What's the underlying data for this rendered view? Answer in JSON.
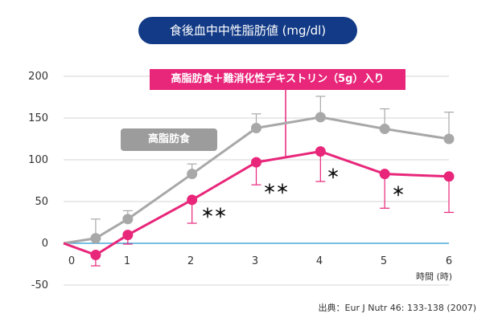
{
  "title": "食後血中中性脂肪値 (mg/dl)",
  "source": "出典：Eur J Nutr 46: 133-138 (2007)",
  "chart_data": {
    "type": "line",
    "x_unit_label": "時間 (時)",
    "x_tick_labels": [
      "0",
      "1",
      "2",
      "3",
      "4",
      "5",
      "6"
    ],
    "y_tick_labels": [
      "200",
      "150",
      "100",
      "50",
      "0",
      "-50"
    ],
    "ylim": [
      -50,
      200
    ],
    "xlim": [
      0,
      6
    ],
    "grid": true,
    "series": [
      {
        "name": "高脂肪食",
        "color": "#a8a8a8",
        "x": [
          0,
          0.5,
          1,
          2,
          3,
          4,
          5,
          6
        ],
        "values": [
          0,
          6,
          29,
          83,
          138,
          151,
          137,
          125
        ],
        "error_up": [
          0,
          23,
          10,
          12,
          17,
          25,
          24,
          32
        ],
        "error_down": [
          0,
          0,
          0,
          0,
          0,
          0,
          0,
          0
        ]
      },
      {
        "name": "高脂肪食＋難消化性デキストリン（5g）入り",
        "color": "#e8267a",
        "x": [
          0,
          0.5,
          1,
          2,
          3,
          4,
          5,
          6
        ],
        "values": [
          0,
          -14,
          10,
          52,
          97,
          110,
          83,
          80
        ],
        "error_up": [
          0,
          0,
          0,
          0,
          0,
          0,
          0,
          0
        ],
        "error_down": [
          0,
          13,
          11,
          28,
          27,
          36,
          41,
          43
        ]
      }
    ],
    "annotations": [
      "＊＊",
      "＊＊",
      "＊",
      "＊"
    ]
  }
}
